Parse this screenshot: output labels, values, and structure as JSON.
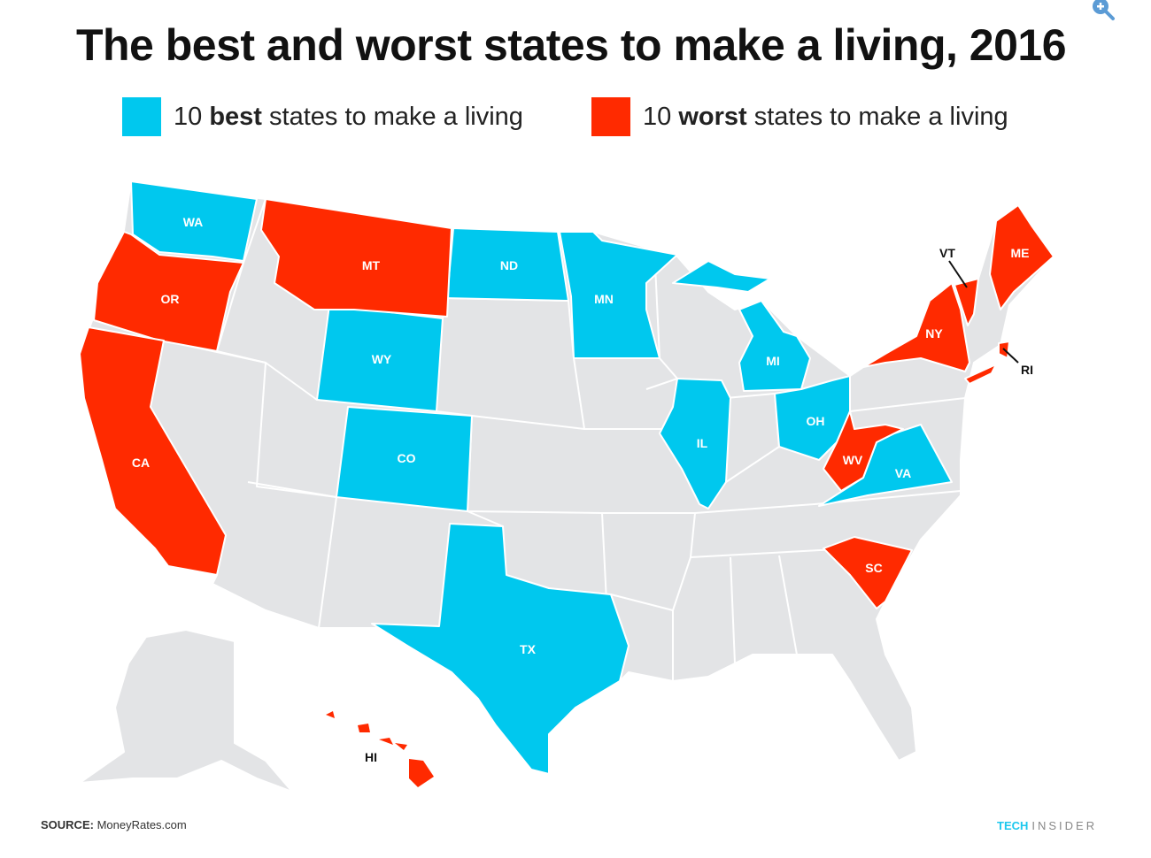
{
  "title": "The best and worst states to make a living, 2016",
  "legend": {
    "best": {
      "prefix": "10 ",
      "bold": "best",
      "suffix": " states to make a living",
      "color": "#00c8ee"
    },
    "worst": {
      "prefix": "10 ",
      "bold": "worst",
      "suffix": " states to make a living",
      "color": "#ff2a00"
    }
  },
  "colors": {
    "neutral": "#e3e4e6",
    "border": "#ffffff"
  },
  "best_states": [
    "WA",
    "ND",
    "MN",
    "WY",
    "CO",
    "MI",
    "IL",
    "OH",
    "VA",
    "TX"
  ],
  "worst_states": [
    "OR",
    "CA",
    "MT",
    "ME",
    "VT",
    "NY",
    "RI",
    "WV",
    "SC",
    "HI"
  ],
  "labels": {
    "WA": "WA",
    "OR": "OR",
    "CA": "CA",
    "MT": "MT",
    "WY": "WY",
    "CO": "CO",
    "ND": "ND",
    "MN": "MN",
    "TX": "TX",
    "IL": "IL",
    "MI": "MI",
    "OH": "OH",
    "WV": "WV",
    "VA": "VA",
    "SC": "SC",
    "NY": "NY",
    "VT": "VT",
    "ME": "ME",
    "RI": "RI",
    "HI": "HI"
  },
  "source": {
    "label": "SOURCE:",
    "text": " MoneyRates.com"
  },
  "brand": {
    "tech": "TECH",
    "insider": "INSIDER"
  },
  "icons": {
    "zoom": "zoom-in-icon"
  }
}
